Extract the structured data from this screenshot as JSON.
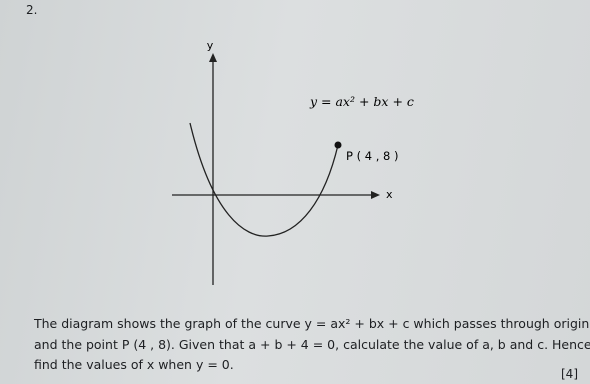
{
  "question": {
    "number": "2.",
    "diagram": {
      "y_axis_label": "y",
      "x_axis_label": "x",
      "equation": "y = ax² + bx + c",
      "point_label": "P ( 4 , 8 )"
    },
    "text_lines": [
      "The diagram shows the graph of the curve y = ax² + bx + c which passes through origin",
      "and the point P (4 , 8). Given that a + b + 4 = 0, calculate the value of a, b and c. Hence,",
      "find the values of x when y = 0."
    ],
    "marks": "[4]"
  }
}
